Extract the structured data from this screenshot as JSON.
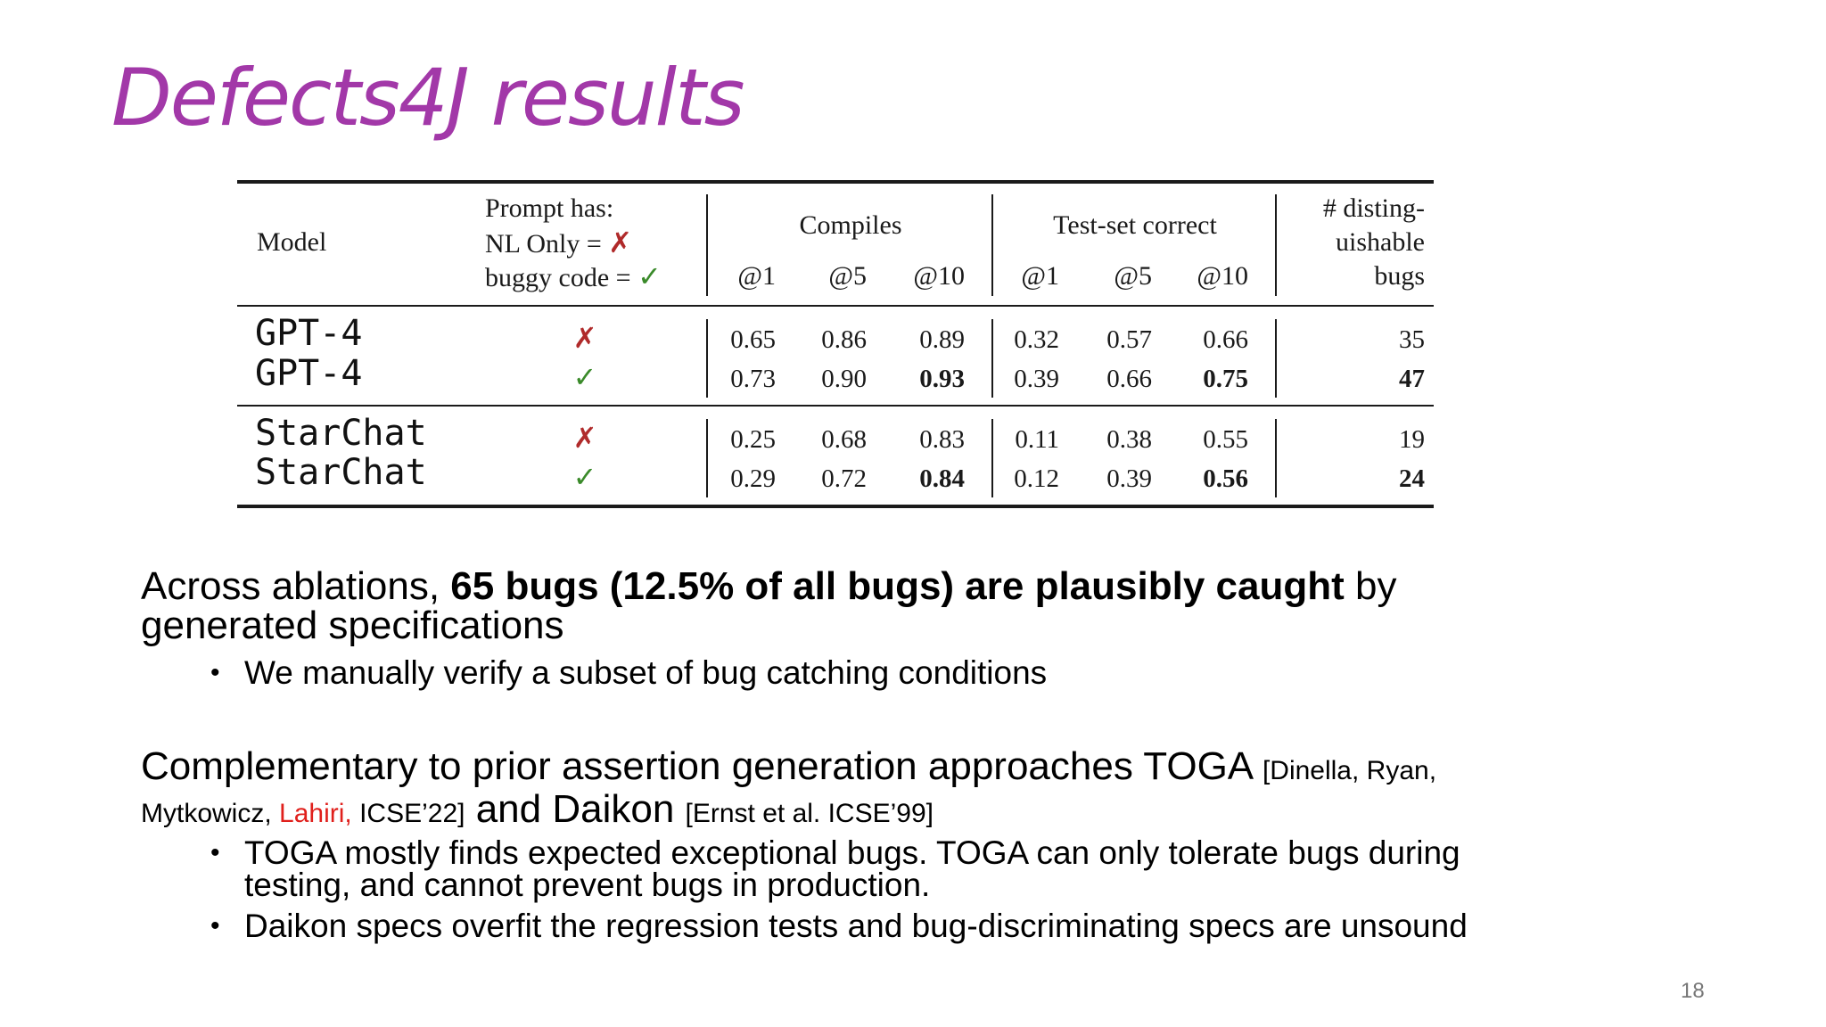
{
  "title": "Defects4J results",
  "table": {
    "headers": {
      "model": "Model",
      "prompt_line1": "Prompt has:",
      "prompt_line2": "NL Only = ",
      "prompt_line3": "buggy code = ",
      "compiles": "Compiles",
      "test_set_correct": "Test-set correct",
      "bugs_line1": "# disting-",
      "bugs_line2": "uishable",
      "bugs_line3": "bugs",
      "at1": "@1",
      "at5": "@5",
      "at10": "@10"
    },
    "marks": {
      "no": "✗",
      "yes": "✓"
    },
    "rows": [
      {
        "model": "GPT-4",
        "prompt": "✗",
        "c1": "0.65",
        "c5": "0.86",
        "c10": "0.89",
        "t1": "0.32",
        "t5": "0.57",
        "t10": "0.66",
        "bugs": "35"
      },
      {
        "model": "GPT-4",
        "prompt": "✓",
        "c1": "0.73",
        "c5": "0.90",
        "c10": "0.93",
        "t1": "0.39",
        "t5": "0.66",
        "t10": "0.75",
        "bugs": "47"
      },
      {
        "model": "StarChat",
        "prompt": "✗",
        "c1": "0.25",
        "c5": "0.68",
        "c10": "0.83",
        "t1": "0.11",
        "t5": "0.38",
        "t10": "0.55",
        "bugs": "19"
      },
      {
        "model": "StarChat",
        "prompt": "✓",
        "c1": "0.29",
        "c5": "0.72",
        "c10": "0.84",
        "t1": "0.12",
        "t5": "0.39",
        "t10": "0.56",
        "bugs": "24"
      }
    ]
  },
  "para1": {
    "prefix": "Across ablations, ",
    "bold": "65 bugs (12.5% of all bugs) are plausibly caught",
    "suffix": " by",
    "line2": "generated specifications",
    "bullet1": "We manually verify a subset of bug catching conditions"
  },
  "para2": {
    "main": "Complementary to prior assertion generation approaches TOGA ",
    "cite1a": "[Dinella, Ryan,",
    "cite1b": "Mytkowicz, ",
    "cite1_red": "Lahiri,",
    "cite1c": " ICSE’22]",
    "and_daikon": " and Daikon ",
    "cite2": "[Ernst et al. ICSE’99]",
    "bullet1_line1": "TOGA mostly finds expected exceptional bugs. TOGA can only tolerate bugs during",
    "bullet1_line2": "testing, and cannot prevent bugs in production.",
    "bullet2": "Daikon specs overfit the regression tests and bug-discriminating specs are unsound"
  },
  "bullet_char": "•",
  "page_number": "18"
}
